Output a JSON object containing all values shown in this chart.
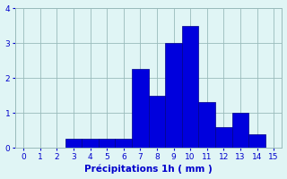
{
  "categories": [
    3,
    4,
    5,
    6,
    7,
    8,
    9,
    10,
    11,
    12,
    13,
    14
  ],
  "values": [
    0.25,
    0.25,
    0.25,
    0.25,
    2.25,
    1.5,
    3.0,
    3.5,
    1.3,
    0.6,
    1.0,
    0.4
  ],
  "bar_color": "#0000dd",
  "bar_edge_color": "#000088",
  "bg_color": "#e0f5f5",
  "grid_color": "#99bbbb",
  "xlabel": "Précipitations 1h ( mm )",
  "xlabel_color": "#0000cc",
  "tick_color": "#0000cc",
  "ylim": [
    0,
    4
  ],
  "xlim": [
    -0.5,
    15.5
  ],
  "yticks": [
    0,
    1,
    2,
    3,
    4
  ],
  "xticks": [
    0,
    1,
    2,
    3,
    4,
    5,
    6,
    7,
    8,
    9,
    10,
    11,
    12,
    13,
    14,
    15
  ]
}
